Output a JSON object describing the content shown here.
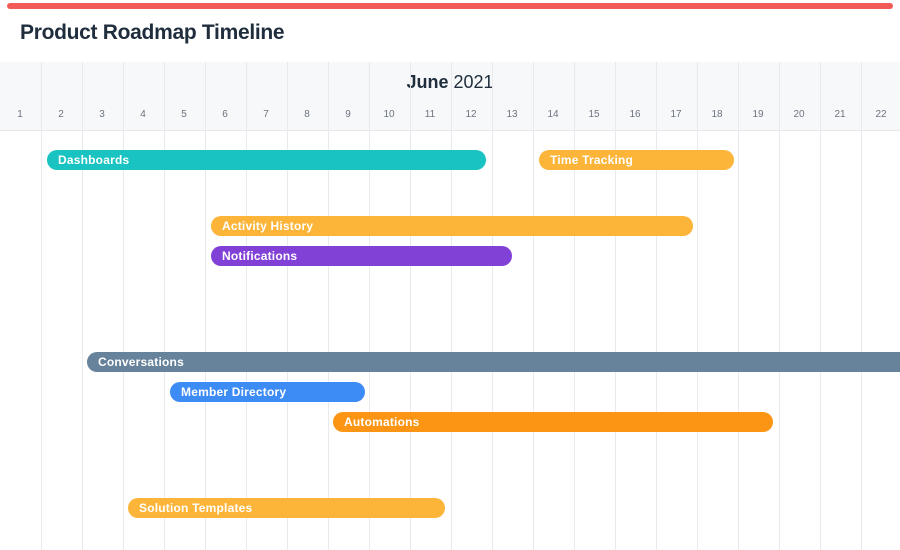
{
  "header": {
    "title": "Product Roadmap Timeline",
    "accent_color": "#f25a57"
  },
  "timeline": {
    "month": "June",
    "year": "2021",
    "days": [
      "1",
      "2",
      "3",
      "4",
      "5",
      "6",
      "7",
      "8",
      "9",
      "10",
      "11",
      "12",
      "13",
      "14",
      "15",
      "16",
      "17",
      "18",
      "19",
      "20",
      "21",
      "22"
    ],
    "tasks": [
      {
        "name": "Dashboards",
        "color": "#19c3c1"
      },
      {
        "name": "Time Tracking",
        "color": "#fcb439"
      },
      {
        "name": "Activity History",
        "color": "#fcb439"
      },
      {
        "name": "Notifications",
        "color": "#8140d6"
      },
      {
        "name": "Conversations",
        "color": "#67829b"
      },
      {
        "name": "Member Directory",
        "color": "#3d8bf5"
      },
      {
        "name": "Automations",
        "color": "#fd9514"
      },
      {
        "name": "Solution Templates",
        "color": "#fcb439"
      }
    ]
  }
}
